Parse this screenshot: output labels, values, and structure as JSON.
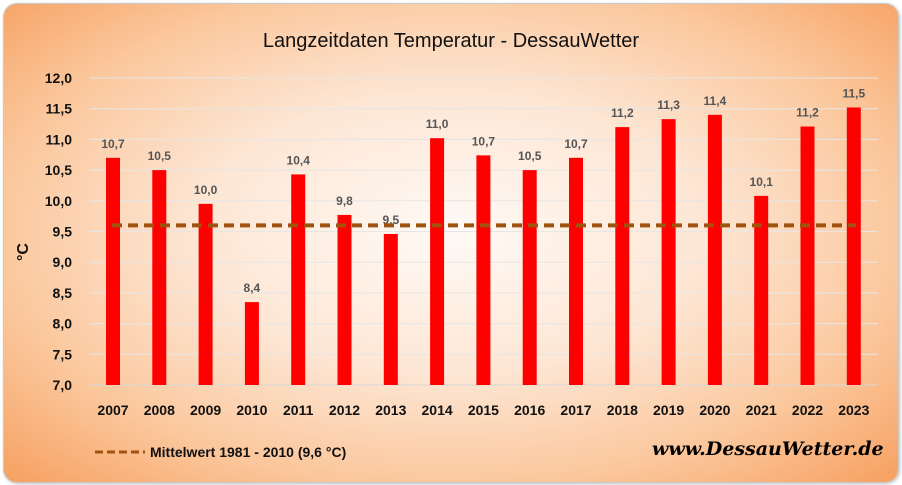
{
  "chart_data": {
    "type": "bar",
    "title": "Langzeitdaten Temperatur - DessauWetter",
    "ylabel": "°C",
    "xlabel": "",
    "ylim": [
      7.0,
      12.0
    ],
    "yticks": [
      "7,0",
      "7,5",
      "8,0",
      "8,5",
      "9,0",
      "9,5",
      "10,0",
      "10,5",
      "11,0",
      "11,5",
      "12,0"
    ],
    "ytick_values": [
      7.0,
      7.5,
      8.0,
      8.5,
      9.0,
      9.5,
      10.0,
      10.5,
      11.0,
      11.5,
      12.0
    ],
    "categories": [
      "2007",
      "2008",
      "2009",
      "2010",
      "2011",
      "2012",
      "2013",
      "2014",
      "2015",
      "2016",
      "2017",
      "2018",
      "2019",
      "2020",
      "2021",
      "2022",
      "2023"
    ],
    "values": [
      10.7,
      10.5,
      9.95,
      8.35,
      10.43,
      9.77,
      9.46,
      11.02,
      10.74,
      10.5,
      10.7,
      11.2,
      11.33,
      11.4,
      10.08,
      11.21,
      11.52
    ],
    "data_labels": [
      "10,7",
      "10,5",
      "10,0",
      "8,4",
      "10,4",
      "9,8",
      "9,5",
      "11,0",
      "10,7",
      "10,5",
      "10,7",
      "11,2",
      "11,3",
      "11,4",
      "10,1",
      "11,2",
      "11,5"
    ],
    "bar_color": "#ff0000",
    "reference_line": {
      "value": 9.6,
      "label": "Mittelwert 1981 - 2010 (9,6 °C)",
      "color": "#a0520f",
      "style": "dashed"
    },
    "grid": true,
    "legend_position": "bottom-left"
  },
  "watermark": "www.DessauWetter.de"
}
